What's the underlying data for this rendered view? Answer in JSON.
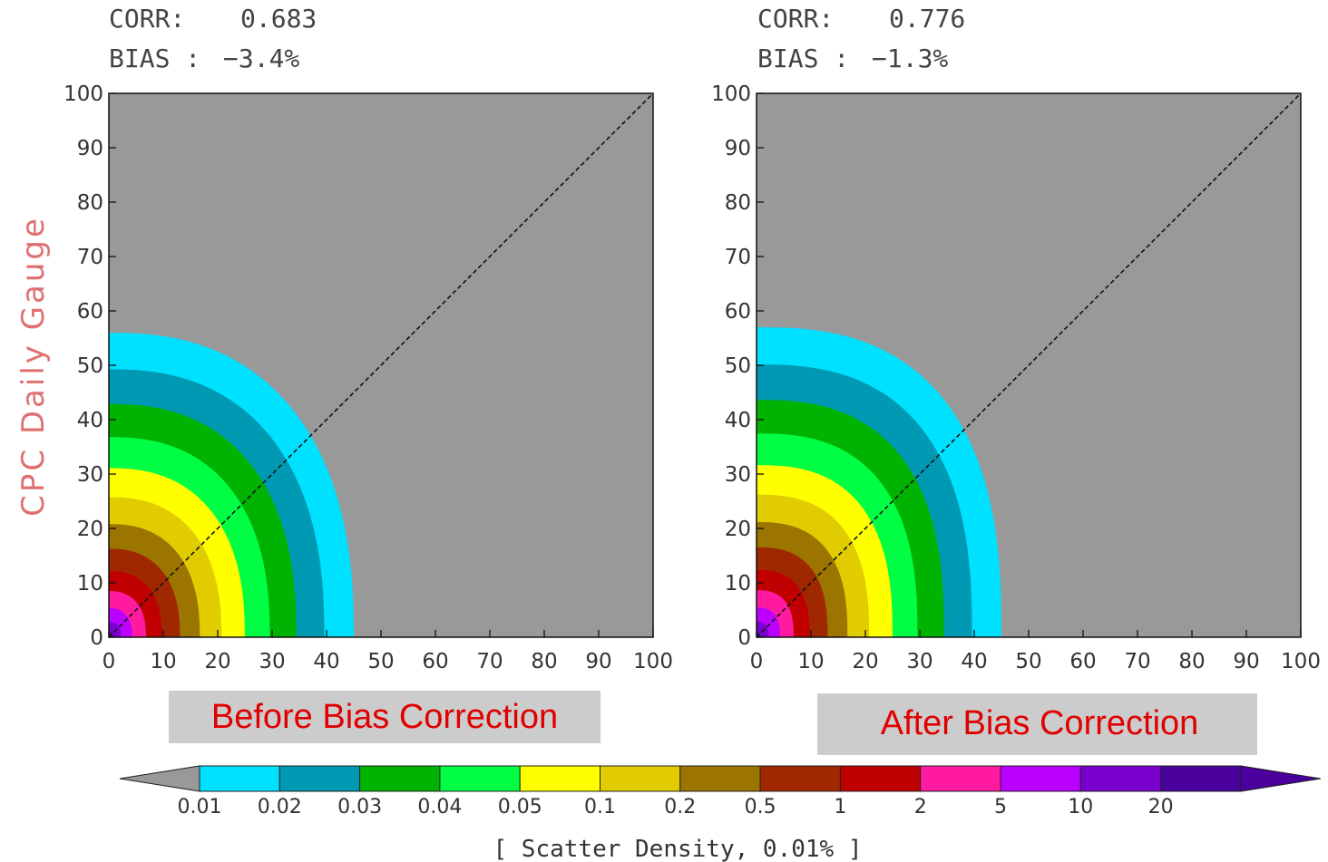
{
  "chart_data": [
    {
      "type": "heatmap",
      "title": "Before Bias Correction",
      "stats": {
        "corr_label": "CORR:",
        "corr_value": "0.683",
        "bias_label": "BIAS :",
        "bias_value": "−3.4%"
      },
      "ylabel": "CPC Daily Gauge",
      "xlim": [
        0,
        100
      ],
      "ylim": [
        0,
        100
      ],
      "ticks": [
        "0",
        "10",
        "20",
        "30",
        "40",
        "50",
        "60",
        "70",
        "80",
        "90",
        "100"
      ],
      "density_extent": {
        "sx": 45,
        "sy": 56,
        "power": 2.4
      },
      "reference_line": "y = x"
    },
    {
      "type": "heatmap",
      "title": "After Bias Correction",
      "stats": {
        "corr_label": "CORR:",
        "corr_value": "0.776",
        "bias_label": "BIAS :",
        "bias_value": "−1.3%"
      },
      "ylabel": "",
      "xlim": [
        0,
        100
      ],
      "ylim": [
        0,
        100
      ],
      "ticks": [
        "0",
        "10",
        "20",
        "30",
        "40",
        "50",
        "60",
        "70",
        "80",
        "90",
        "100"
      ],
      "density_extent": {
        "sx": 45,
        "sy": 57,
        "power": 2.6
      },
      "reference_line": "y = x"
    }
  ],
  "colorbar": {
    "title": "[ Scatter Density, 0.01% ]",
    "levels": [
      "0.01",
      "0.02",
      "0.03",
      "0.04",
      "0.05",
      "0.1",
      "0.2",
      "0.5",
      "1",
      "2",
      "5",
      "10",
      "20"
    ],
    "below_color": "#999999",
    "colors": [
      "#00e0ff",
      "#0099b3",
      "#00b300",
      "#00ff44",
      "#ffff00",
      "#e0cc00",
      "#9c7400",
      "#a02800",
      "#c00000",
      "#ff1aa0",
      "#bb00ff",
      "#7a00d0",
      "#4a009c"
    ]
  }
}
